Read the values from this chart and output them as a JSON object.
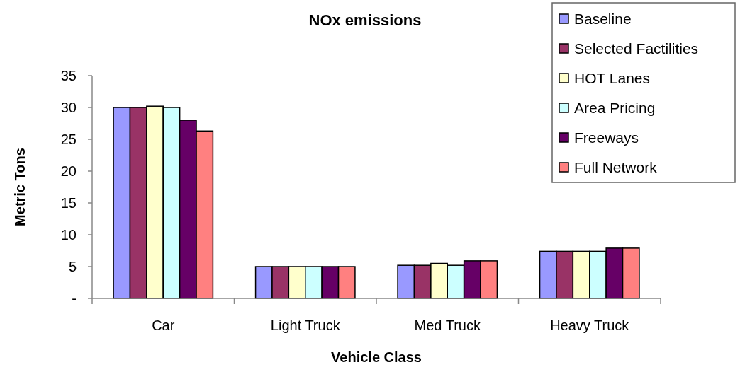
{
  "chart_data": {
    "type": "bar",
    "title": "NOx emissions",
    "xlabel": "Vehicle Class",
    "ylabel": "Metric Tons",
    "categories": [
      "Car",
      "Light Truck",
      "Med Truck",
      "Heavy Truck"
    ],
    "series": [
      {
        "name": "Baseline",
        "color": "#9999ff",
        "values": [
          30,
          5.0,
          5.2,
          7.4
        ]
      },
      {
        "name": "Selected Factilities",
        "color": "#993366",
        "values": [
          30,
          5.0,
          5.2,
          7.4
        ]
      },
      {
        "name": "HOT Lanes",
        "color": "#ffffcc",
        "values": [
          30.2,
          5.0,
          5.5,
          7.4
        ]
      },
      {
        "name": "Area Pricing",
        "color": "#ccffff",
        "values": [
          30,
          5.0,
          5.2,
          7.4
        ]
      },
      {
        "name": "Freeways",
        "color": "#660066",
        "values": [
          28,
          5.0,
          5.9,
          7.9
        ]
      },
      {
        "name": "Full Network",
        "color": "#ff8080",
        "values": [
          26.3,
          5.0,
          5.9,
          7.9
        ]
      }
    ],
    "ylim": [
      0,
      35
    ],
    "yticks": [
      {
        "value": 0,
        "label": "-"
      },
      5,
      10,
      15,
      20,
      25,
      30,
      35
    ],
    "legend": "top right"
  }
}
